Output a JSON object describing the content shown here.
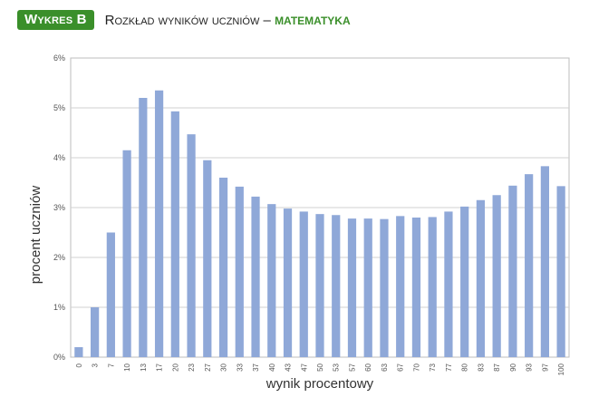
{
  "header": {
    "badge": "Wykres B",
    "title_main": "Rozkład wyników uczniów – ",
    "title_subject": "matematyka"
  },
  "colors": {
    "badge_bg": "#3a8f2a",
    "subject_text": "#3a8f2a",
    "bar_fill": "#8fa8d8",
    "grid": "#d0d0d0"
  },
  "chart_data": {
    "type": "bar",
    "title": "Rozkład wyników uczniów – matematyka",
    "xlabel": "wynik procentowy",
    "ylabel": "procent uczniów",
    "ylim": [
      0,
      6
    ],
    "yticks": [
      "0%",
      "1%",
      "2%",
      "3%",
      "4%",
      "5%",
      "6%"
    ],
    "grid": true,
    "categories": [
      "0",
      "3",
      "7",
      "10",
      "13",
      "17",
      "20",
      "23",
      "27",
      "30",
      "33",
      "37",
      "40",
      "43",
      "47",
      "50",
      "53",
      "57",
      "60",
      "63",
      "67",
      "70",
      "73",
      "77",
      "80",
      "83",
      "87",
      "90",
      "93",
      "97",
      "100"
    ],
    "values": [
      0.2,
      1.0,
      2.5,
      4.15,
      5.2,
      5.35,
      4.93,
      4.47,
      3.95,
      3.6,
      3.42,
      3.22,
      3.07,
      2.98,
      2.92,
      2.87,
      2.85,
      2.78,
      2.78,
      2.77,
      2.83,
      2.8,
      2.81,
      2.92,
      3.02,
      3.15,
      3.25,
      3.44,
      3.67,
      3.83,
      3.43
    ]
  }
}
